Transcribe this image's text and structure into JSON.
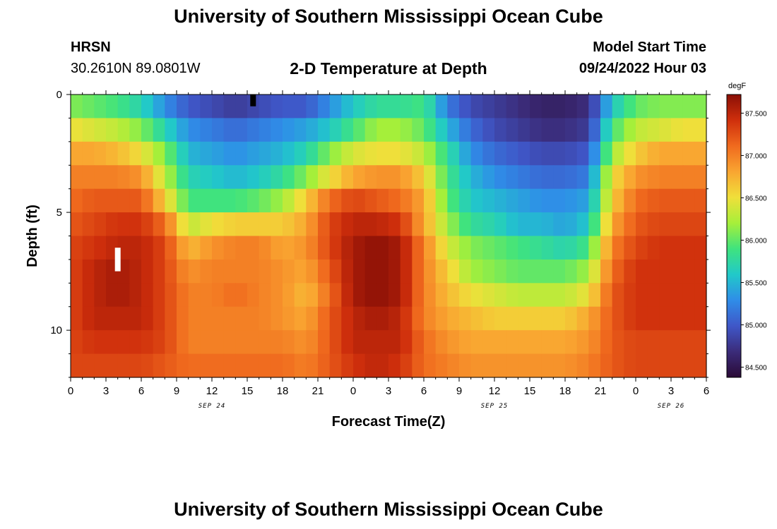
{
  "header": {
    "title": "University of Southern Mississippi Ocean Cube",
    "station": "HRSN",
    "coordinates": "30.2610N  89.0801W",
    "subtitle": "2-D Temperature at Depth",
    "start_label": "Model Start Time",
    "start_value": "09/24/2022 Hour 03"
  },
  "footer": {
    "title": "University of Southern Mississippi Ocean Cube"
  },
  "chart_data": {
    "type": "heatmap",
    "title": "2-D Temperature at Depth",
    "xlabel": "Forecast Time(Z)",
    "ylabel": "Depth (ft)",
    "x_ticks": [
      "0",
      "3",
      "6",
      "9",
      "12",
      "15",
      "18",
      "21",
      "0",
      "3",
      "6",
      "9",
      "12",
      "15",
      "18",
      "21",
      "0",
      "3",
      "6"
    ],
    "x_tick_hours": [
      0,
      3,
      6,
      9,
      12,
      15,
      18,
      21,
      24,
      27,
      30,
      33,
      36,
      39,
      42,
      45,
      48,
      51,
      54
    ],
    "x_range_hours": [
      0,
      54
    ],
    "date_labels": [
      {
        "text": "SEP 24",
        "hour": 12
      },
      {
        "text": "SEP 25",
        "hour": 36
      },
      {
        "text": "SEP 26",
        "hour": 51
      }
    ],
    "y_ticks": [
      "0",
      "5",
      "10"
    ],
    "y_tick_values": [
      0,
      5,
      10
    ],
    "y_range_ft": [
      0,
      12
    ],
    "colorbar": {
      "unit": "degF",
      "range": [
        84.38,
        87.72
      ],
      "ticks": [
        "84.500",
        "85.000",
        "85.500",
        "86.000",
        "86.500",
        "87.000",
        "87.500"
      ],
      "tick_values": [
        84.5,
        85.0,
        85.5,
        86.0,
        86.5,
        87.0,
        87.5
      ],
      "stops": [
        "#2a0a36",
        "#3b2c7a",
        "#3f57c8",
        "#2f8de8",
        "#21c9c9",
        "#3fe37e",
        "#a6ef3a",
        "#f0df3a",
        "#f9a531",
        "#f06a1e",
        "#cf2f0c",
        "#8a0f06"
      ]
    },
    "depth_levels_ft": [
      0.5,
      1.5,
      2.5,
      3.5,
      4.5,
      5.5,
      6.5,
      7.5,
      8.5,
      9.5,
      10.5,
      11.5
    ],
    "time_hours": [
      0,
      2,
      4,
      6,
      8,
      10,
      12,
      14,
      16,
      18,
      20,
      22,
      24,
      26,
      28,
      30,
      32,
      34,
      36,
      38,
      40,
      42,
      44,
      46,
      48,
      50,
      52,
      54
    ],
    "temperature_degF": [
      [
        86.1,
        86.0,
        85.9,
        85.7,
        85.3,
        85.0,
        84.9,
        84.8,
        84.9,
        85.0,
        85.0,
        85.3,
        85.6,
        85.8,
        85.8,
        85.9,
        85.2,
        84.9,
        84.8,
        84.7,
        84.6,
        84.6,
        84.7,
        85.6,
        86.0,
        86.1,
        86.1,
        86.1
      ],
      [
        86.5,
        86.4,
        86.3,
        86.1,
        85.7,
        85.3,
        85.2,
        85.1,
        85.2,
        85.3,
        85.4,
        85.6,
        85.9,
        86.2,
        86.2,
        86.0,
        85.5,
        85.1,
        84.9,
        84.8,
        84.7,
        84.7,
        84.8,
        85.9,
        86.3,
        86.4,
        86.5,
        86.5
      ],
      [
        86.8,
        86.8,
        86.7,
        86.5,
        86.1,
        85.5,
        85.4,
        85.3,
        85.4,
        85.5,
        85.7,
        86.1,
        86.4,
        86.5,
        86.5,
        86.3,
        85.8,
        85.3,
        85.1,
        85.0,
        84.9,
        84.9,
        85.0,
        86.2,
        86.6,
        86.8,
        86.8,
        86.8
      ],
      [
        87.0,
        87.0,
        87.0,
        86.9,
        86.3,
        85.7,
        85.6,
        85.5,
        85.6,
        85.8,
        86.1,
        86.5,
        86.8,
        86.9,
        86.9,
        86.6,
        85.9,
        85.5,
        85.3,
        85.2,
        85.1,
        85.1,
        85.2,
        86.5,
        86.9,
        87.0,
        87.0,
        87.0
      ],
      [
        87.1,
        87.2,
        87.2,
        87.2,
        86.6,
        85.9,
        85.9,
        85.9,
        86.0,
        86.2,
        86.6,
        87.1,
        87.3,
        87.2,
        87.1,
        86.8,
        86.0,
        85.6,
        85.5,
        85.4,
        85.3,
        85.3,
        85.4,
        86.6,
        87.1,
        87.2,
        87.2,
        87.2
      ],
      [
        87.2,
        87.3,
        87.4,
        87.4,
        87.1,
        86.3,
        86.5,
        86.6,
        86.6,
        86.6,
        86.8,
        87.3,
        87.5,
        87.5,
        87.4,
        86.8,
        86.2,
        85.8,
        85.7,
        85.5,
        85.5,
        85.4,
        85.6,
        86.8,
        87.2,
        87.3,
        87.3,
        87.3
      ],
      [
        87.3,
        87.4,
        87.5,
        87.5,
        87.3,
        86.7,
        86.9,
        87.0,
        87.0,
        86.8,
        86.9,
        87.3,
        87.6,
        87.7,
        87.6,
        87.0,
        86.4,
        86.1,
        86.0,
        85.9,
        85.8,
        85.7,
        85.9,
        87.0,
        87.3,
        87.4,
        87.4,
        87.4
      ],
      [
        87.3,
        87.5,
        87.6,
        87.5,
        87.3,
        86.9,
        87.0,
        87.0,
        87.0,
        86.9,
        86.8,
        87.2,
        87.6,
        87.7,
        87.6,
        87.0,
        86.6,
        86.2,
        86.1,
        86.0,
        86.0,
        86.0,
        86.2,
        87.1,
        87.4,
        87.4,
        87.4,
        87.4
      ],
      [
        87.3,
        87.5,
        87.6,
        87.5,
        87.3,
        87.0,
        87.0,
        87.1,
        87.0,
        86.9,
        86.7,
        87.1,
        87.6,
        87.7,
        87.6,
        87.0,
        86.7,
        86.5,
        86.4,
        86.3,
        86.3,
        86.3,
        86.5,
        87.2,
        87.4,
        87.4,
        87.4,
        87.4
      ],
      [
        87.3,
        87.5,
        87.5,
        87.5,
        87.3,
        87.0,
        87.0,
        87.0,
        87.0,
        86.9,
        86.8,
        87.2,
        87.5,
        87.6,
        87.5,
        87.0,
        86.8,
        86.7,
        86.6,
        86.6,
        86.6,
        86.6,
        86.8,
        87.2,
        87.4,
        87.4,
        87.4,
        87.4
      ],
      [
        87.3,
        87.4,
        87.4,
        87.4,
        87.3,
        87.0,
        87.0,
        87.0,
        87.0,
        87.0,
        86.9,
        87.2,
        87.5,
        87.5,
        87.5,
        87.1,
        86.9,
        86.8,
        86.8,
        86.8,
        86.8,
        86.8,
        86.9,
        87.2,
        87.3,
        87.3,
        87.3,
        87.3
      ],
      [
        87.3,
        87.3,
        87.3,
        87.3,
        87.2,
        87.1,
        87.1,
        87.1,
        87.1,
        87.1,
        87.0,
        87.2,
        87.4,
        87.5,
        87.4,
        87.1,
        87.0,
        86.9,
        86.9,
        86.9,
        86.9,
        86.9,
        87.0,
        87.2,
        87.3,
        87.3,
        87.3,
        87.3
      ]
    ],
    "markers": [
      {
        "name": "white-bar",
        "hour": 4,
        "depth_from_ft": 6.5,
        "depth_to_ft": 7.5,
        "color": "#ffffff"
      },
      {
        "name": "black-bar",
        "hour": 15.5,
        "depth_from_ft": 0.0,
        "depth_to_ft": 0.5,
        "color": "#000000"
      }
    ]
  }
}
